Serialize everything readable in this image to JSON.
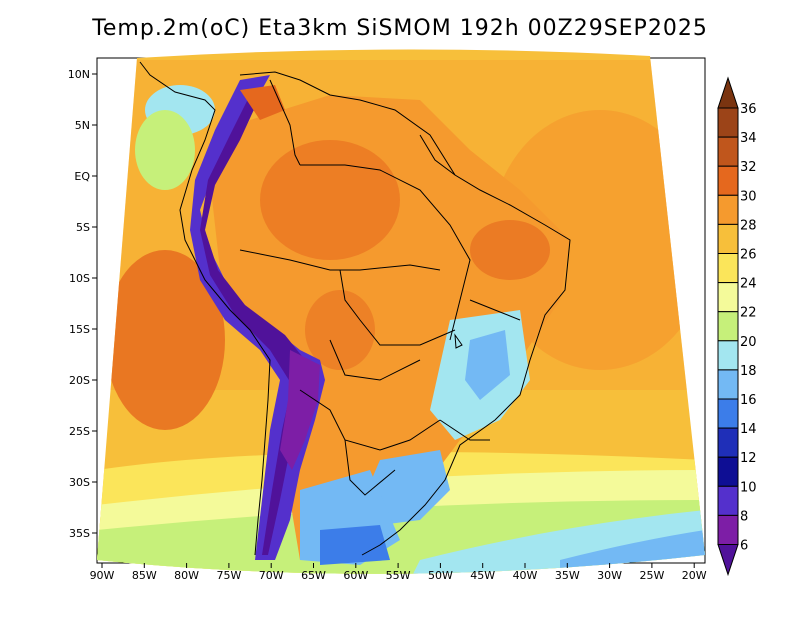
{
  "title": "Temp.2m(oC) Eta3km SiSMOM 192h 00Z29SEP2025",
  "map": {
    "lat_labels": [
      "10N",
      "5N",
      "EQ",
      "5S",
      "10S",
      "15S",
      "20S",
      "25S",
      "30S",
      "35S"
    ],
    "lon_labels": [
      "90W",
      "85W",
      "80W",
      "75W",
      "70W",
      "65W",
      "60W",
      "55W",
      "50W",
      "45W",
      "40W",
      "35W",
      "30W",
      "25W",
      "20W"
    ],
    "lon_range": [
      -91,
      -19
    ],
    "lat_range": [
      -38,
      12
    ]
  },
  "colorbar": {
    "levels": [
      "36",
      "34",
      "32",
      "30",
      "28",
      "26",
      "24",
      "22",
      "20",
      "18",
      "16",
      "14",
      "12",
      "10",
      "8",
      "6"
    ],
    "colors": [
      "#7a3410",
      "#9c4418",
      "#c0561c",
      "#e5681e",
      "#f59a2e",
      "#f7bf3a",
      "#fbe55a",
      "#f4fa9a",
      "#c6f07a",
      "#a3e6f0",
      "#73b9f4",
      "#3c7de9",
      "#1f2fb8",
      "#0e0e94",
      "#5430cc",
      "#7d1ea6",
      "#50129a"
    ]
  }
}
